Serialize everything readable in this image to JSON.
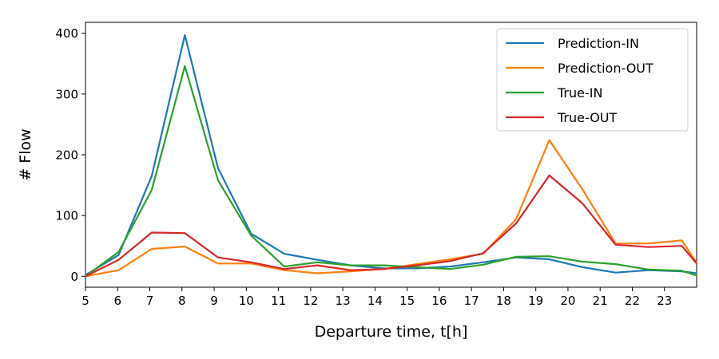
{
  "chart_data": {
    "type": "line",
    "title": "",
    "xlabel": "Departure time, t[h]",
    "ylabel": "# Flow",
    "xlim": [
      5,
      24
    ],
    "ylim": [
      -18,
      418
    ],
    "xticks": [
      "5",
      "6",
      "7",
      "8",
      "9",
      "10",
      "11",
      "12",
      "13",
      "14",
      "15",
      "16",
      "17",
      "18",
      "19",
      "20",
      "21",
      "22",
      "23"
    ],
    "yticks": [
      "0",
      "100",
      "200",
      "300",
      "400"
    ],
    "grid": false,
    "legend_position": "top-right",
    "x": [
      5.0,
      6.03,
      7.06,
      8.09,
      9.12,
      10.15,
      11.18,
      12.21,
      13.24,
      14.27,
      15.3,
      16.33,
      17.36,
      18.39,
      19.42,
      20.45,
      21.48,
      22.51,
      23.54,
      24.0
    ],
    "series": [
      {
        "name": "Prediction-IN",
        "color": "#1f77b4",
        "values": [
          2,
          35,
          165,
          397,
          178,
          70,
          37,
          27,
          18,
          13,
          13,
          16,
          23,
          31,
          28,
          15,
          6,
          10,
          8,
          5
        ]
      },
      {
        "name": "Prediction-OUT",
        "color": "#ff7f0e",
        "values": [
          0,
          10,
          45,
          49,
          21,
          21,
          10,
          5,
          8,
          12,
          20,
          28,
          37,
          94,
          224,
          143,
          54,
          54,
          59,
          22
        ]
      },
      {
        "name": "True-IN",
        "color": "#2ca02c",
        "values": [
          0,
          40,
          142,
          346,
          158,
          67,
          16,
          23,
          18,
          18,
          15,
          12,
          19,
          32,
          33,
          24,
          20,
          11,
          9,
          1
        ]
      },
      {
        "name": "True-OUT",
        "color": "#d62728",
        "values": [
          0,
          27,
          72,
          71,
          31,
          23,
          12,
          18,
          10,
          12,
          18,
          25,
          38,
          87,
          166,
          120,
          52,
          48,
          50,
          21
        ]
      }
    ]
  }
}
